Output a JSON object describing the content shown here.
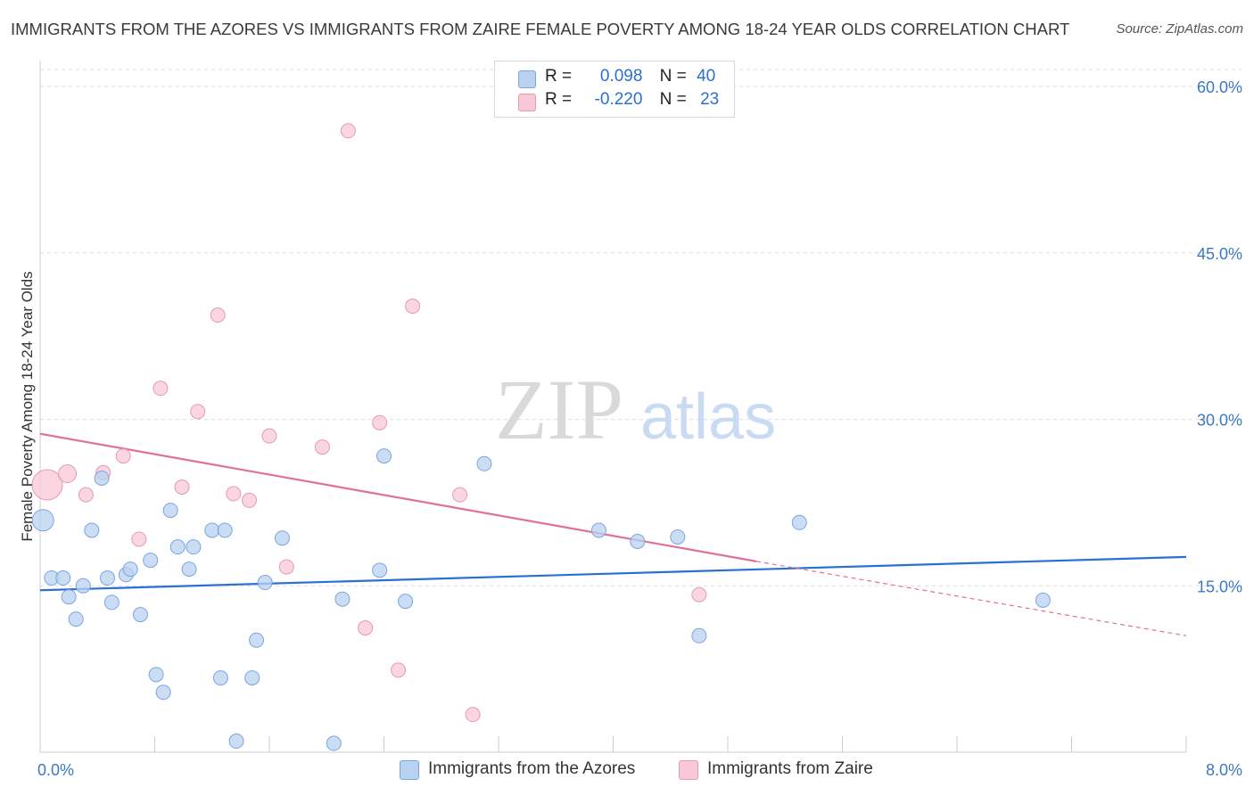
{
  "header": {
    "title": "IMMIGRANTS FROM THE AZORES VS IMMIGRANTS FROM ZAIRE FEMALE POVERTY AMONG 18-24 YEAR OLDS CORRELATION CHART",
    "source": "Source: ZipAtlas.com"
  },
  "watermark": {
    "zip": "ZIP",
    "atlas": "atlas"
  },
  "legend": {
    "r_label": "R =",
    "n_label": "N =",
    "azores": {
      "r": "0.098",
      "n": "40"
    },
    "zaire": {
      "r": "-0.220",
      "n": "23"
    }
  },
  "colors": {
    "azores_fill": "#b9d2f2",
    "azores_stroke": "#7aa6dd",
    "azores_line": "#2a6fd4",
    "zaire_fill": "#f8c8d6",
    "zaire_stroke": "#e899b2",
    "zaire_line": "#e0709a"
  },
  "chart_data": {
    "type": "scatter",
    "title": "IMMIGRANTS FROM THE AZORES VS IMMIGRANTS FROM ZAIRE FEMALE POVERTY AMONG 18-24 YEAR OLDS CORRELATION CHART",
    "xlabel": "",
    "ylabel": "Female Poverty Among 18-24 Year Olds",
    "xlim": [
      0,
      8
    ],
    "ylim": [
      0,
      60
    ],
    "x_tick_labels": [
      "0.0%",
      "8.0%"
    ],
    "y_ticks": [
      15,
      30,
      45,
      60
    ],
    "y_tick_labels": [
      "15.0%",
      "30.0%",
      "45.0%",
      "60.0%"
    ],
    "series": [
      {
        "name": "Immigrants from the Azores",
        "r": 0.098,
        "n": 40,
        "points": [
          [
            0.02,
            20.9
          ],
          [
            0.08,
            15.7
          ],
          [
            0.16,
            15.7
          ],
          [
            0.2,
            14.0
          ],
          [
            0.25,
            12.0
          ],
          [
            0.3,
            15.0
          ],
          [
            0.36,
            20.0
          ],
          [
            0.43,
            24.7
          ],
          [
            0.47,
            15.7
          ],
          [
            0.5,
            13.5
          ],
          [
            0.6,
            16.0
          ],
          [
            0.63,
            16.5
          ],
          [
            0.7,
            12.4
          ],
          [
            0.77,
            17.3
          ],
          [
            0.81,
            7.0
          ],
          [
            0.86,
            5.4
          ],
          [
            0.91,
            21.8
          ],
          [
            0.96,
            18.5
          ],
          [
            1.04,
            16.5
          ],
          [
            1.07,
            18.5
          ],
          [
            1.2,
            20.0
          ],
          [
            1.26,
            6.7
          ],
          [
            1.29,
            20.0
          ],
          [
            1.37,
            1.0
          ],
          [
            1.48,
            6.7
          ],
          [
            1.51,
            10.1
          ],
          [
            1.57,
            15.3
          ],
          [
            1.69,
            19.3
          ],
          [
            2.05,
            0.8
          ],
          [
            2.11,
            13.8
          ],
          [
            2.37,
            16.4
          ],
          [
            2.4,
            26.7
          ],
          [
            2.55,
            13.6
          ],
          [
            3.1,
            26.0
          ],
          [
            3.9,
            20.0
          ],
          [
            4.17,
            19.0
          ],
          [
            4.45,
            19.4
          ],
          [
            4.6,
            10.5
          ],
          [
            5.3,
            20.7
          ],
          [
            7.0,
            13.7
          ]
        ],
        "trend": {
          "x": [
            0,
            8
          ],
          "y": [
            14.6,
            17.6
          ]
        }
      },
      {
        "name": "Immigrants from Zaire",
        "r": -0.22,
        "n": 23,
        "points": [
          [
            0.05,
            24.1
          ],
          [
            0.19,
            25.1
          ],
          [
            0.32,
            23.2
          ],
          [
            0.44,
            25.2
          ],
          [
            0.58,
            26.7
          ],
          [
            0.69,
            19.2
          ],
          [
            0.84,
            32.8
          ],
          [
            0.99,
            23.9
          ],
          [
            1.1,
            30.7
          ],
          [
            1.24,
            39.4
          ],
          [
            1.35,
            23.3
          ],
          [
            1.46,
            22.7
          ],
          [
            1.6,
            28.5
          ],
          [
            1.72,
            16.7
          ],
          [
            1.97,
            27.5
          ],
          [
            2.15,
            56.0
          ],
          [
            2.27,
            11.2
          ],
          [
            2.37,
            29.7
          ],
          [
            2.5,
            7.4
          ],
          [
            2.6,
            40.2
          ],
          [
            2.93,
            23.2
          ],
          [
            3.02,
            3.4
          ],
          [
            4.6,
            14.2
          ]
        ],
        "trend": {
          "x": [
            0,
            5.0
          ],
          "y": [
            28.7,
            17.2
          ]
        },
        "trend_extension": {
          "x": [
            5.0,
            8
          ],
          "y": [
            17.2,
            10.5
          ]
        }
      }
    ],
    "bubble_sizes": {
      "azores": [
        24,
        16,
        16,
        16,
        16,
        16,
        16,
        16,
        16,
        16,
        16,
        16,
        16,
        16,
        16,
        16,
        16,
        16,
        16,
        16,
        16,
        16,
        16,
        16,
        16,
        16,
        16,
        16,
        16,
        16,
        16,
        16,
        16,
        16,
        16,
        16,
        16,
        16,
        16,
        16
      ],
      "zaire": [
        34,
        20,
        16,
        16,
        16,
        16,
        16,
        16,
        16,
        16,
        16,
        16,
        16,
        16,
        16,
        16,
        16,
        16,
        16,
        16,
        16,
        16,
        16
      ]
    }
  }
}
